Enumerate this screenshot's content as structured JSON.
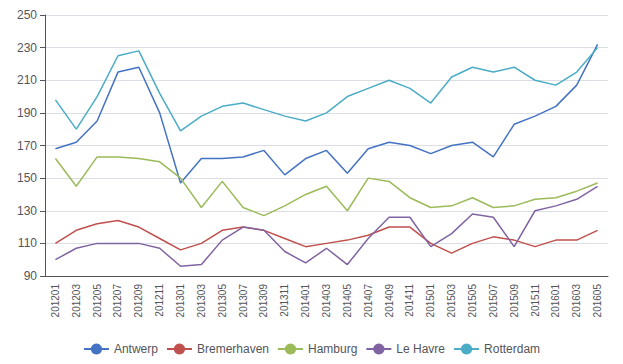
{
  "chart_data": {
    "type": "line",
    "categories": [
      "201201",
      "201203",
      "201205",
      "201207",
      "201209",
      "201211",
      "201301",
      "201303",
      "201305",
      "201307",
      "201309",
      "201311",
      "201401",
      "201403",
      "201405",
      "201407",
      "201409",
      "201411",
      "201501",
      "201503",
      "201505",
      "201507",
      "201509",
      "201511",
      "201601",
      "201603",
      "201605"
    ],
    "series": [
      {
        "name": "Antwerp",
        "color": "#4472c4",
        "values": [
          168,
          172,
          185,
          215,
          218,
          190,
          147,
          162,
          162,
          163,
          167,
          152,
          162,
          167,
          153,
          168,
          172,
          170,
          165,
          170,
          172,
          163,
          183,
          188,
          194,
          207,
          232
        ]
      },
      {
        "name": "Bremerhaven",
        "color": "#c0504d",
        "values": [
          110,
          118,
          122,
          124,
          120,
          113,
          106,
          110,
          118,
          120,
          118,
          113,
          108,
          110,
          112,
          115,
          120,
          120,
          110,
          104,
          110,
          114,
          112,
          108,
          112,
          112,
          118
        ]
      },
      {
        "name": "Hamburg",
        "color": "#9bbb59",
        "values": [
          162,
          145,
          163,
          163,
          162,
          160,
          150,
          132,
          148,
          132,
          127,
          133,
          140,
          145,
          130,
          150,
          148,
          138,
          132,
          133,
          138,
          132,
          133,
          137,
          138,
          142,
          147
        ]
      },
      {
        "name": "Le Havre",
        "color": "#8064a2",
        "values": [
          100,
          107,
          110,
          110,
          110,
          107,
          96,
          97,
          112,
          120,
          118,
          105,
          98,
          107,
          97,
          113,
          126,
          126,
          108,
          116,
          128,
          126,
          108,
          130,
          133,
          137,
          145
        ]
      },
      {
        "name": "Rotterdam",
        "color": "#4bacc6",
        "values": [
          198,
          180,
          200,
          225,
          228,
          202,
          179,
          188,
          194,
          196,
          192,
          188,
          185,
          190,
          200,
          205,
          210,
          205,
          196,
          212,
          218,
          215,
          218,
          210,
          207,
          215,
          230
        ]
      }
    ],
    "ylim": [
      90,
      250
    ],
    "yticks": [
      90,
      110,
      130,
      150,
      170,
      190,
      210,
      230,
      250
    ],
    "grid": true,
    "legend": "bottom"
  }
}
